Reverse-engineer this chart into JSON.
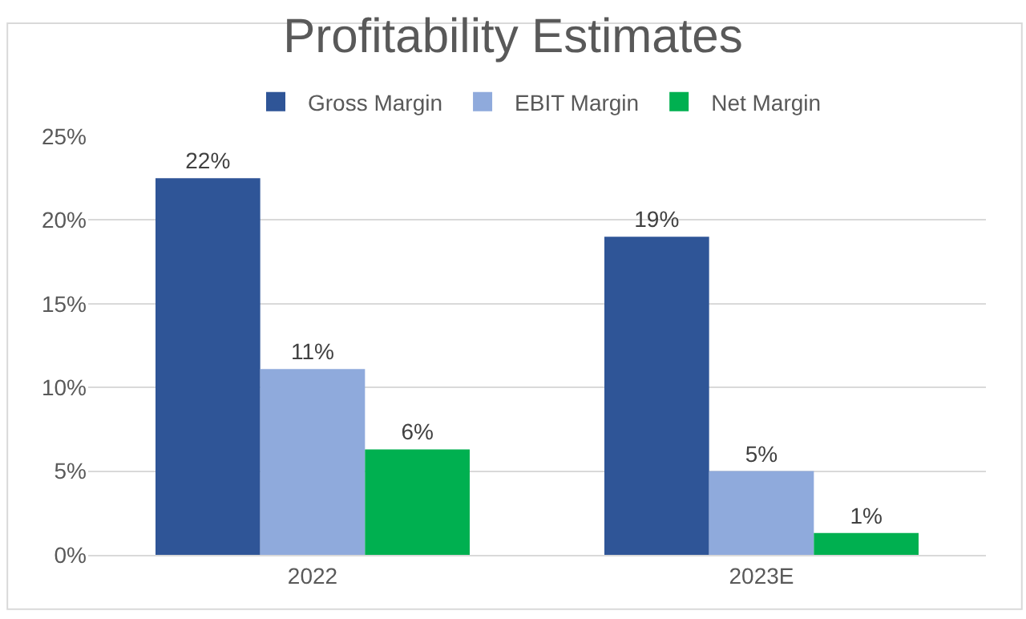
{
  "chart_data": {
    "type": "bar",
    "title": "Profitability Estimates",
    "categories": [
      "2022",
      "2023E"
    ],
    "series": [
      {
        "name": "Gross Margin",
        "color": "#2f5597",
        "values": [
          22.5,
          19.0
        ],
        "value_labels": [
          "22%",
          "19%"
        ]
      },
      {
        "name": "EBIT Margin",
        "color": "#8faadc",
        "values": [
          11.1,
          5.0
        ],
        "value_labels": [
          "11%",
          "5%"
        ]
      },
      {
        "name": "Net Margin",
        "color": "#00b050",
        "values": [
          6.3,
          1.3
        ],
        "value_labels": [
          "6%",
          "1%"
        ]
      }
    ],
    "ylim": [
      0,
      25
    ],
    "yticks": [
      {
        "value": 0,
        "label": "0%"
      },
      {
        "value": 5,
        "label": "5%"
      },
      {
        "value": 10,
        "label": "10%"
      },
      {
        "value": 15,
        "label": "15%"
      },
      {
        "value": 20,
        "label": "20%"
      },
      {
        "value": 25,
        "label": "25%"
      }
    ],
    "grid": "y",
    "legend": "top"
  }
}
